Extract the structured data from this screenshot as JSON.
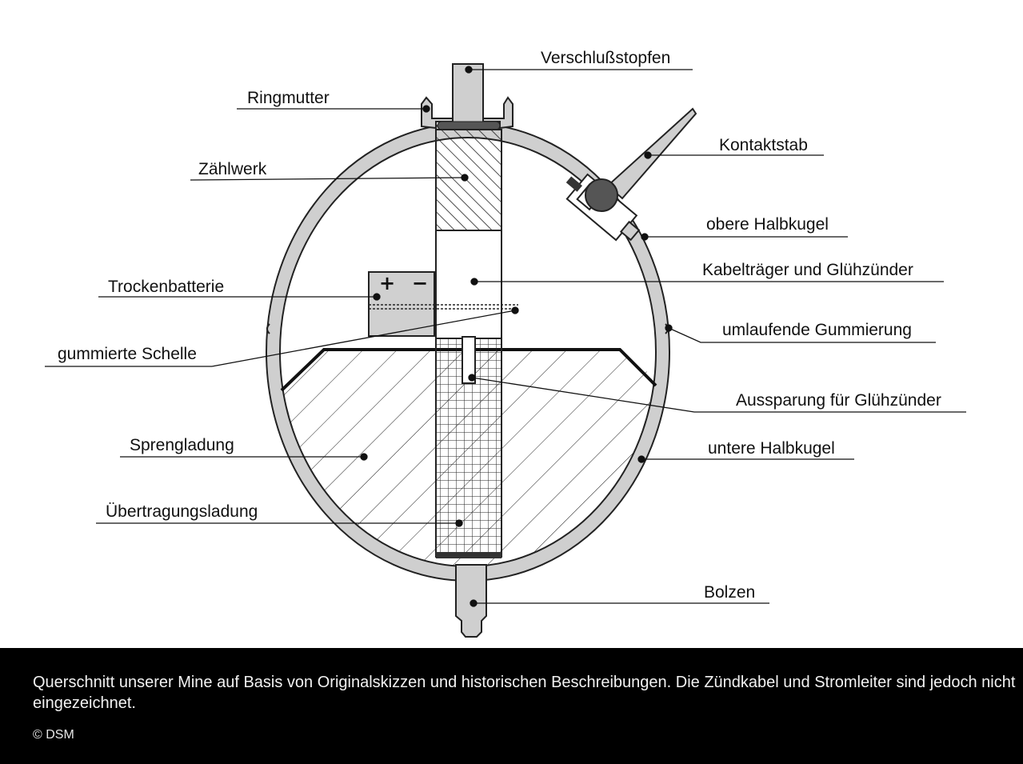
{
  "labels": {
    "verschluss": "Verschlußstopfen",
    "ringmutter": "Ringmutter",
    "zaehlwerk": "Zählwerk",
    "kontaktstab": "Kontaktstab",
    "obere": "obere Halbkugel",
    "kabeltraeger": "Kabelträger und Glühzünder",
    "trocken": "Trockenbatterie",
    "gummierung": "umlaufende Gummierung",
    "schelle": "gummierte Schelle",
    "aussparung": "Aussparung für Glühzünder",
    "spreng": "Sprengladung",
    "untere": "untere Halbkugel",
    "uebertragung": "Übertragungsladung",
    "bolzen": "Bolzen",
    "battery_plus": "+",
    "battery_minus": "−"
  },
  "caption": {
    "text": "Querschnitt unserer Mine auf Basis von Originalskizzen und historischen  Beschreibungen. Die Zündkabel und Stromleiter sind jedoch nicht  eingezeichnet.",
    "credit": "© DSM"
  }
}
